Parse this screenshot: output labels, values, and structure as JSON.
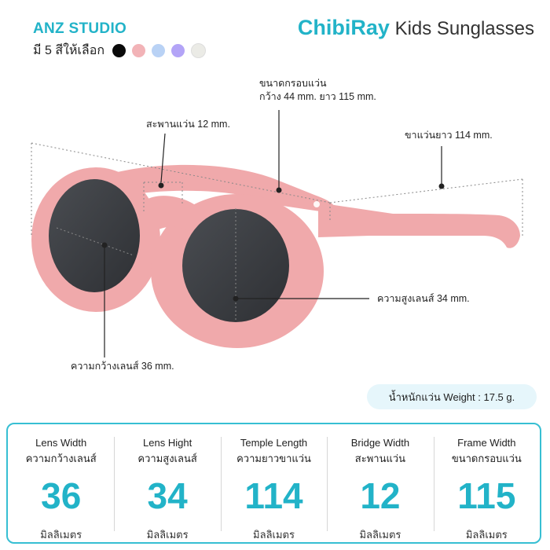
{
  "header": {
    "brand": "ANZ STUDIO",
    "colors_label": "มี 5 สีให้เลือก",
    "color_options": [
      "#0a0a0a",
      "#f2b3b7",
      "#b9d2f5",
      "#b3a4f7",
      "#ebebe6"
    ],
    "product_name": "ChibiRay",
    "product_subtitle": "Kids Sunglasses"
  },
  "product": {
    "frame_color": "#f0a9ab",
    "lens_color": "#3a3d42"
  },
  "callouts": {
    "frame_size_line1": "ขนาดกรอบแว่น",
    "frame_size_line2": "กว้าง 44 mm. ยาว 115 mm.",
    "bridge": "สะพานแว่น 12 mm.",
    "temple": "ขาแว่นยาว 114 mm.",
    "lens_height": "ความสูงเลนส์ 34 mm.",
    "lens_width": "ความกว้างเลนส์ 36 mm."
  },
  "weight": "น้ำหนักแว่น Weight  : 17.5 g.",
  "specs": [
    {
      "en": "Lens Width",
      "th": "ความกว้างเลนส์",
      "value": "36",
      "unit": "มิลลิเมตร"
    },
    {
      "en": "Lens Hight",
      "th": "ความสูงเลนส์",
      "value": "34",
      "unit": "มิลลิเมตร"
    },
    {
      "en": "Temple Length",
      "th": "ความยาวขาแว่น",
      "value": "114",
      "unit": "มิลลิเมตร"
    },
    {
      "en": "Bridge Width",
      "th": "สะพานแว่น",
      "value": "12",
      "unit": "มิลลิเมตร"
    },
    {
      "en": "Frame Width",
      "th": "ขนาดกรอบแว่น",
      "value": "115",
      "unit": "มิลลิเมตร"
    }
  ]
}
